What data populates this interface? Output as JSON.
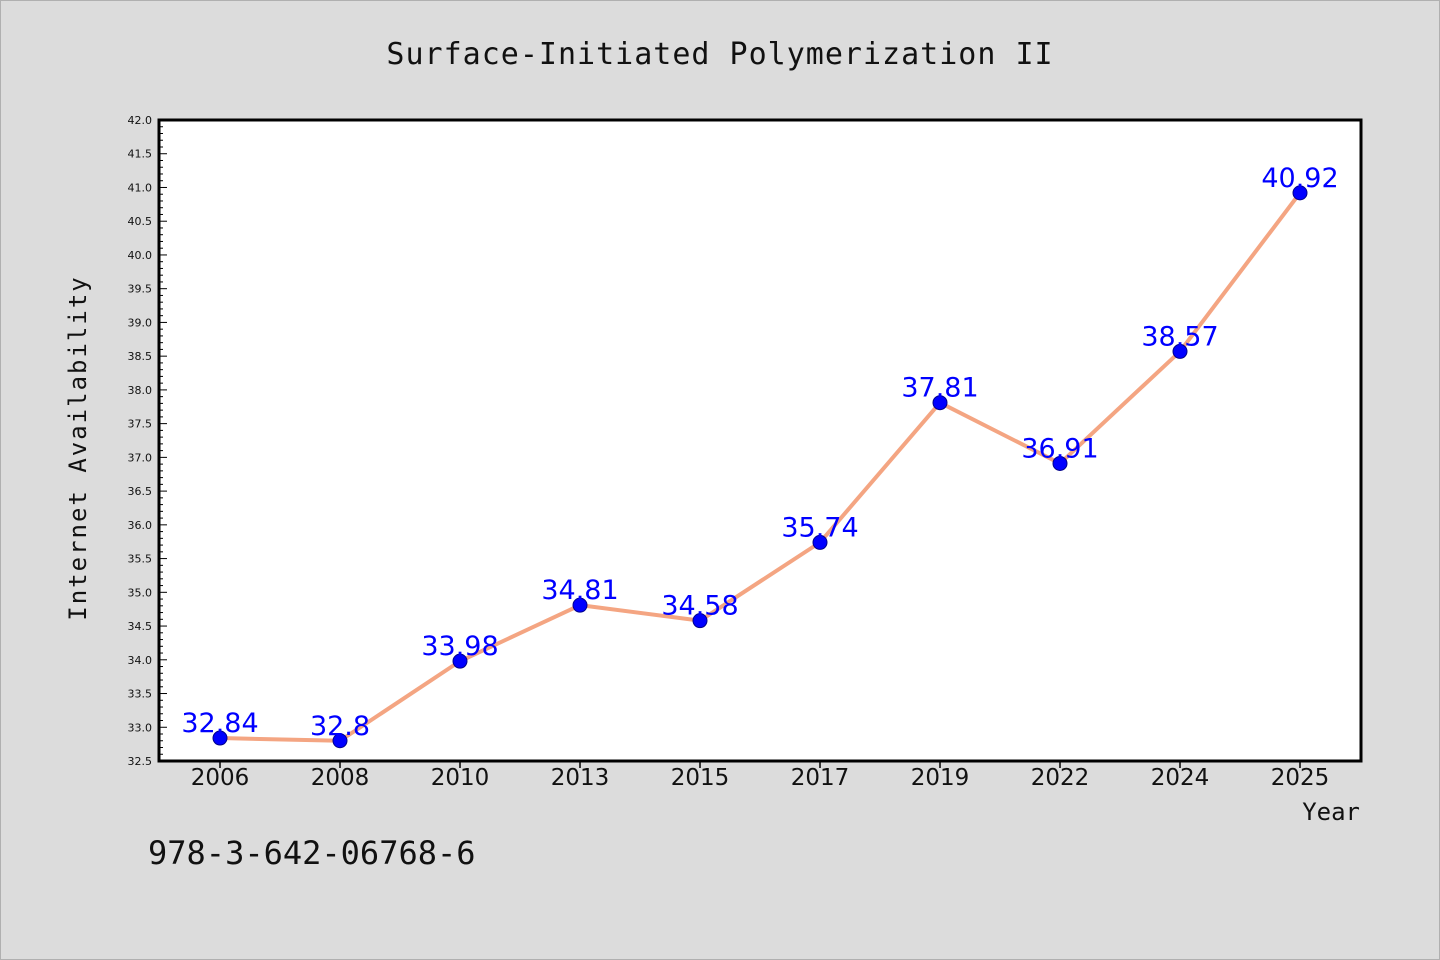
{
  "chart_data": {
    "type": "line",
    "title": "Surface-Initiated Polymerization II",
    "xlabel": "Year",
    "ylabel": "Internet Availability",
    "categories": [
      "2006",
      "2008",
      "2010",
      "2013",
      "2015",
      "2017",
      "2019",
      "2022",
      "2024",
      "2025"
    ],
    "series": [
      {
        "values": [
          32.84,
          32.8,
          33.98,
          34.81,
          34.58,
          35.74,
          37.81,
          36.91,
          38.57,
          40.92
        ],
        "data_labels": [
          "32.84",
          "32.8",
          "33.98",
          "34.81",
          "34.58",
          "35.74",
          "37.81",
          "36.91",
          "38.57",
          "40.92"
        ]
      }
    ],
    "ylim": [
      32.5,
      42.0
    ],
    "yticks": [
      32.5,
      33.0,
      33.5,
      34.0,
      34.5,
      35.0,
      35.5,
      36.0,
      36.5,
      37.0,
      37.5,
      38.0,
      38.5,
      39.0,
      39.5,
      40.0,
      40.5,
      41.0,
      41.5,
      42.0
    ],
    "ytick_labels": [
      "32.5",
      "33.0",
      "33.5",
      "34.0",
      "34.5",
      "35.0",
      "35.5",
      "36.0",
      "36.5",
      "37.0",
      "37.5",
      "38.0",
      "38.5",
      "39.0",
      "39.5",
      "40.0",
      "40.5",
      "41.0",
      "41.5",
      "42.0"
    ],
    "grid": false,
    "legend": "none",
    "colors": {
      "line": "#f4a582",
      "marker": "#0000ff",
      "data_label": "#0000ff",
      "plot_background": "#ffffff",
      "figure_background": "#dcdcdc",
      "axis": "#000000"
    }
  },
  "annotation": {
    "isbn": "978-3-642-06768-6"
  }
}
